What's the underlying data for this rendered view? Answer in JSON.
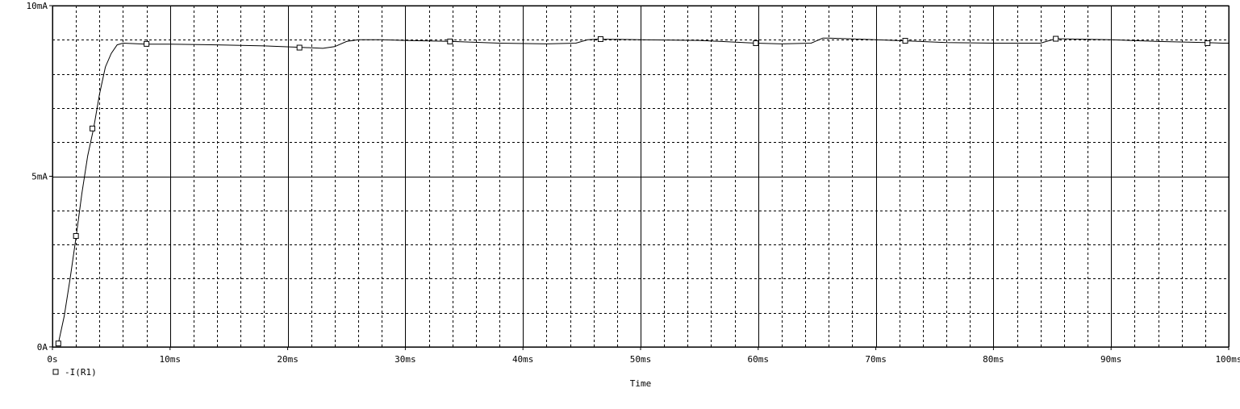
{
  "chart_data": {
    "type": "line",
    "title": "",
    "xlabel": "Time",
    "ylabel": "",
    "xlim": [
      0,
      100
    ],
    "ylim": [
      0,
      10
    ],
    "grid": true,
    "legend_placement": "bottom-left",
    "x_ticks": [
      {
        "value": 0,
        "label": "0s"
      },
      {
        "value": 10,
        "label": "10ms"
      },
      {
        "value": 20,
        "label": "20ms"
      },
      {
        "value": 30,
        "label": "30ms"
      },
      {
        "value": 40,
        "label": "40ms"
      },
      {
        "value": 50,
        "label": "50ms"
      },
      {
        "value": 60,
        "label": "60ms"
      },
      {
        "value": 70,
        "label": "70ms"
      },
      {
        "value": 80,
        "label": "80ms"
      },
      {
        "value": 90,
        "label": "90ms"
      },
      {
        "value": 100,
        "label": "100ms"
      }
    ],
    "y_ticks": [
      {
        "value": 0,
        "label": "0A"
      },
      {
        "value": 5,
        "label": "5mA"
      },
      {
        "value": 10,
        "label": "10mA"
      }
    ],
    "series": [
      {
        "name": "-I(R1)",
        "color": "#000000",
        "x": [
          0.5,
          1.0,
          1.5,
          2.0,
          2.5,
          3.0,
          3.5,
          4.0,
          4.5,
          5.0,
          5.5,
          6.0,
          8.0,
          10,
          14,
          18,
          21,
          23,
          24,
          25,
          26,
          28,
          30,
          34,
          38,
          42,
          44.5,
          45.5,
          46.5,
          50,
          55,
          59.8,
          62,
          64.5,
          65.5,
          66,
          70,
          72.5,
          76,
          80,
          84,
          85,
          85.5,
          87,
          90,
          94,
          98,
          99.5,
          100
        ],
        "y": [
          0.1,
          0.9,
          2.0,
          3.2,
          4.5,
          5.6,
          6.4,
          7.4,
          8.2,
          8.6,
          8.85,
          8.9,
          8.87,
          8.87,
          8.85,
          8.82,
          8.78,
          8.75,
          8.8,
          8.95,
          9.0,
          9.0,
          8.98,
          8.95,
          8.9,
          8.88,
          8.9,
          9.0,
          9.02,
          9.0,
          8.98,
          8.9,
          8.88,
          8.9,
          9.05,
          9.05,
          9.0,
          8.97,
          8.92,
          8.9,
          8.9,
          9.0,
          9.03,
          9.02,
          9.0,
          8.95,
          8.92,
          8.9,
          8.9
        ],
        "markers": {
          "x": [
            0.5,
            2.0,
            3.4,
            8.0,
            21.0,
            33.8,
            46.6,
            59.8,
            72.5,
            85.3,
            98.2
          ],
          "y": [
            0.1,
            3.25,
            6.4,
            8.88,
            8.77,
            8.95,
            9.02,
            8.9,
            8.97,
            9.03,
            8.9
          ]
        }
      }
    ]
  }
}
